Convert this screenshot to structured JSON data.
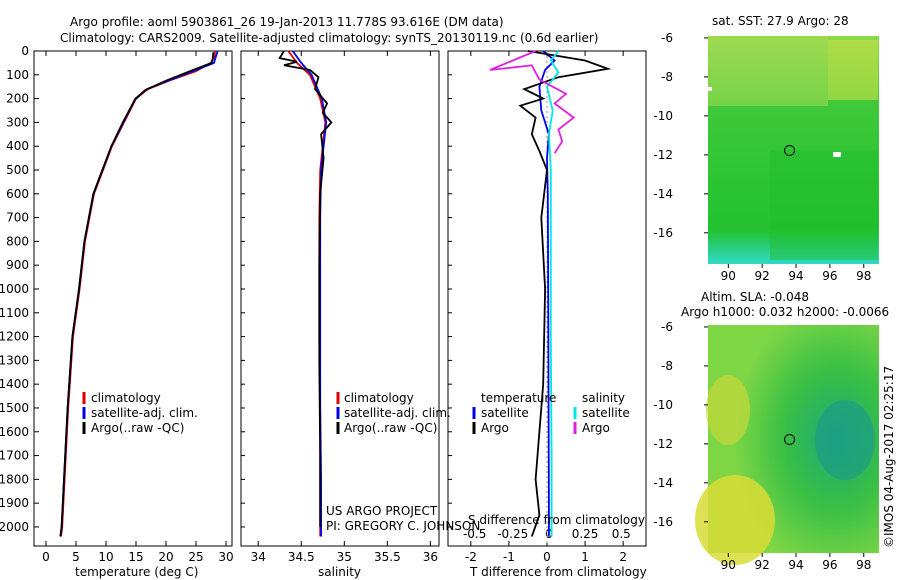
{
  "header": {
    "title_line1": "Argo profile: aoml 5903861_26 19-Jan-2013 11.778S 93.616E (DM data)",
    "title_line2": "Climatology: CARS2009. Satellite-adjusted climatology: synTS_20130119.nc (0.6d earlier)"
  },
  "side_text": {
    "credit": "©IMOS 04-Aug-2017 02:25:17",
    "project_line1": "US ARGO PROJECT",
    "project_line2": "PI: GREGORY C. JOHNSON"
  },
  "colors": {
    "climatology": "#dd0000",
    "satellite": "#0000ee",
    "argo": "#000000",
    "satellite_salinity": "#00e5e5",
    "argo_salinity": "#e020e0"
  },
  "chart_data": [
    {
      "type": "line",
      "id": "temperature",
      "title": "",
      "xlabel": "temperature (deg C)",
      "ylabel": "",
      "xlim": [
        -2,
        31
      ],
      "ylim": [
        2080,
        0
      ],
      "xticks": [
        0,
        5,
        10,
        15,
        20,
        25,
        30
      ],
      "yticks": [
        0,
        100,
        200,
        300,
        400,
        500,
        600,
        700,
        800,
        900,
        1000,
        1100,
        1200,
        1300,
        1400,
        1500,
        1600,
        1700,
        1800,
        1900,
        2000
      ],
      "legend": [
        "climatology",
        "satellite-adj. clim.",
        "Argo(..raw -QC)"
      ],
      "series": [
        {
          "name": "climatology",
          "color": "#dd0000",
          "x": [
            28.2,
            28.0,
            27.5,
            25.0,
            21.0,
            17.0,
            15.0,
            13.0,
            11.0,
            9.5,
            8.0,
            6.5,
            5.6,
            4.5,
            3.7,
            3.1,
            2.7,
            2.5
          ],
          "y": [
            0,
            25,
            50,
            85,
            120,
            160,
            200,
            300,
            400,
            500,
            600,
            800,
            1000,
            1200,
            1500,
            1800,
            2000,
            2040
          ]
        },
        {
          "name": "satellite-adj. clim.",
          "color": "#0000ee",
          "x": [
            28.6,
            28.3,
            28.0,
            24.5,
            20.8,
            16.8,
            14.9,
            12.9,
            10.9,
            9.4,
            7.9,
            6.4,
            5.5,
            4.4,
            3.6,
            3.0,
            2.6,
            2.4
          ],
          "y": [
            0,
            25,
            50,
            85,
            120,
            160,
            200,
            300,
            400,
            500,
            600,
            800,
            1000,
            1200,
            1500,
            1800,
            2000,
            2040
          ]
        },
        {
          "name": "Argo(..raw -QC)",
          "color": "#000000",
          "x": [
            27.9,
            27.8,
            27.6,
            23.5,
            20.0,
            16.5,
            14.8,
            12.8,
            10.9,
            9.4,
            7.9,
            6.4,
            5.5,
            4.4,
            3.6,
            3.0,
            2.6,
            2.4
          ],
          "y": [
            5,
            30,
            50,
            90,
            125,
            165,
            205,
            300,
            400,
            500,
            600,
            800,
            1000,
            1200,
            1500,
            1800,
            2000,
            2040
          ]
        }
      ]
    },
    {
      "type": "line",
      "id": "salinity",
      "title": "",
      "xlabel": "salinity",
      "ylabel": "",
      "xlim": [
        33.8,
        36.1
      ],
      "ylim": [
        2080,
        0
      ],
      "xticks": [
        34,
        34.5,
        35,
        35.5,
        36
      ],
      "legend": [
        "climatology",
        "satellite-adj. clim.",
        "Argo(..raw -QC)"
      ],
      "series": [
        {
          "name": "climatology",
          "color": "#dd0000",
          "x": [
            34.35,
            34.45,
            34.6,
            34.72,
            34.78,
            34.75,
            34.72,
            34.71,
            34.71,
            34.71,
            34.72,
            34.72,
            34.72,
            34.72
          ],
          "y": [
            0,
            50,
            100,
            200,
            300,
            400,
            500,
            700,
            900,
            1200,
            1500,
            1800,
            2000,
            2040
          ]
        },
        {
          "name": "satellite-adj. clim.",
          "color": "#0000ee",
          "x": [
            34.4,
            34.5,
            34.62,
            34.74,
            34.79,
            34.76,
            34.73,
            34.72,
            34.72,
            34.72,
            34.72,
            34.73,
            34.73,
            34.73
          ],
          "y": [
            0,
            50,
            100,
            200,
            300,
            400,
            500,
            700,
            900,
            1200,
            1500,
            1800,
            2000,
            2040
          ]
        },
        {
          "name": "Argo(..raw -QC)",
          "color": "#000000",
          "x": [
            34.3,
            34.25,
            34.45,
            34.3,
            34.6,
            34.7,
            34.66,
            34.8,
            34.75,
            34.85,
            34.73,
            34.76,
            34.72,
            34.71,
            34.71,
            34.72,
            34.72
          ],
          "y": [
            0,
            30,
            45,
            60,
            80,
            110,
            160,
            220,
            260,
            300,
            350,
            450,
            600,
            900,
            1300,
            1700,
            2000
          ]
        }
      ]
    },
    {
      "type": "line",
      "id": "difference",
      "title": "",
      "xlabel": "T difference from climatology",
      "xlabel_top": "S difference from climatology",
      "ylabel": "",
      "xlim": [
        -2.6,
        2.6
      ],
      "ylim": [
        2080,
        0
      ],
      "xticks": [
        -2,
        -1,
        0,
        1,
        2
      ],
      "xticks_top": [
        "-0.5",
        "-0.25",
        "0",
        "0.25",
        "0.5"
      ],
      "xticks_top_pos": [
        -1.9,
        -0.9,
        0.05,
        1.0,
        1.95
      ],
      "legend_titles": [
        "temperature",
        "salinity"
      ],
      "legend": [
        "satellite",
        "Argo",
        "satellite",
        "Argo"
      ],
      "series": [
        {
          "name": "T satellite",
          "color": "#0000ee",
          "x": [
            -0.1,
            0.2,
            -0.05,
            -0.2,
            -0.15,
            0.05,
            0.0,
            0.02,
            0.03,
            0.04,
            0.05,
            0.05
          ],
          "y": [
            0,
            40,
            80,
            150,
            250,
            350,
            450,
            600,
            900,
            1400,
            1900,
            2040
          ]
        },
        {
          "name": "T Argo",
          "color": "#000000",
          "x": [
            -0.5,
            1.0,
            1.6,
            0.3,
            -0.6,
            -0.1,
            -0.7,
            -0.3,
            -0.4,
            -0.2,
            0.0,
            -0.15,
            -0.05,
            -0.1,
            -0.3,
            -0.2,
            -0.4
          ],
          "y": [
            0,
            40,
            75,
            110,
            160,
            200,
            230,
            280,
            350,
            420,
            500,
            700,
            1000,
            1400,
            1800,
            1950,
            2040
          ]
        },
        {
          "name": "S satellite",
          "color": "#00e5e5",
          "x": [
            0.3,
            0.1,
            0.3,
            0.0,
            0.15,
            0.05,
            0.1,
            0.1,
            0.1,
            0.12,
            0.12
          ],
          "y": [
            0,
            40,
            90,
            150,
            250,
            350,
            500,
            800,
            1200,
            1700,
            2040
          ]
        },
        {
          "name": "S Argo",
          "color": "#e020e0",
          "x": [
            -0.3,
            -1.5,
            -0.4,
            -0.2,
            0.5,
            0.2,
            0.7,
            0.3,
            0.4,
            0.2
          ],
          "y": [
            0,
            80,
            60,
            120,
            180,
            220,
            280,
            330,
            380,
            430
          ]
        }
      ]
    },
    {
      "type": "heatmap",
      "id": "sst_map",
      "title": "sat. SST: 27.9 Argo: 28",
      "xlim": [
        88.8,
        98.9
      ],
      "ylim": [
        -17.6,
        -5.9
      ],
      "xticks": [
        90,
        92,
        94,
        96,
        98
      ],
      "yticks": [
        -6,
        -8,
        -10,
        -12,
        -14,
        -16
      ],
      "marker": {
        "lon": 93.616,
        "lat": -11.778
      }
    },
    {
      "type": "heatmap",
      "id": "sla_map",
      "title": "Altim. SLA: -0.048",
      "subtitle": "Argo h1000: 0.032 h2000: -0.0066",
      "xlim": [
        88.8,
        98.9
      ],
      "ylim": [
        -17.6,
        -5.9
      ],
      "xticks": [
        90,
        92,
        94,
        96,
        98
      ],
      "yticks": [
        -6,
        -8,
        -10,
        -12,
        -14,
        -16
      ],
      "marker": {
        "lon": 93.616,
        "lat": -11.778
      }
    }
  ]
}
